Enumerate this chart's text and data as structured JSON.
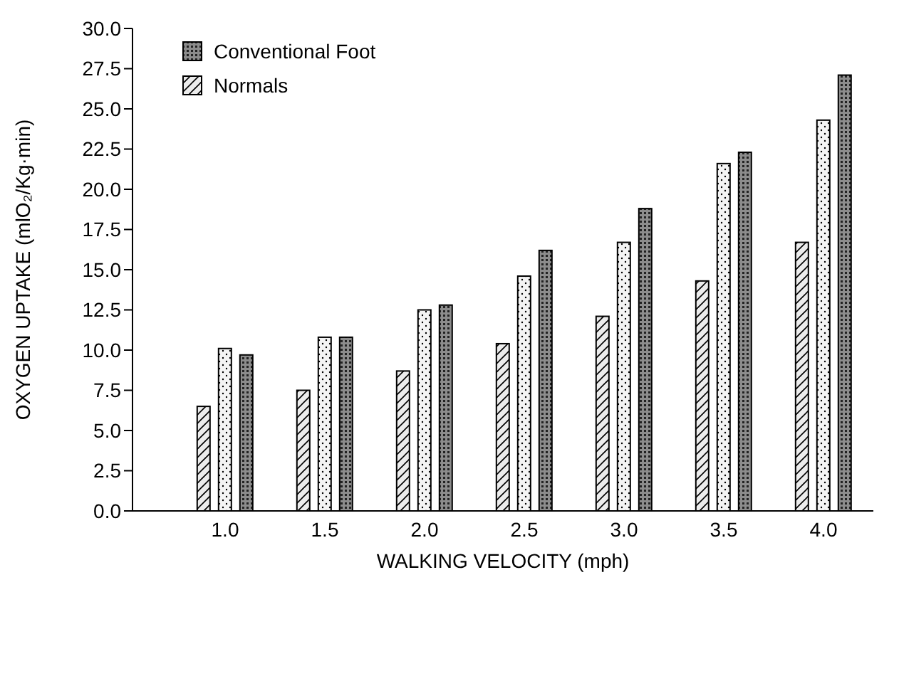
{
  "chart_data": {
    "type": "bar",
    "xlabel": "WALKING VELOCITY (mph)",
    "ylabel": "OXYGEN UPTAKE (mlO₂/Kg·min)",
    "categories": [
      "1.0",
      "1.5",
      "2.0",
      "2.5",
      "3.0",
      "3.5",
      "4.0"
    ],
    "series": [
      {
        "name": "Normals",
        "color": "#ececec",
        "values": [
          6.5,
          7.5,
          8.7,
          10.4,
          12.1,
          14.3,
          16.7
        ]
      },
      {
        "color": "#f4f4f4",
        "values": [
          10.1,
          10.8,
          12.5,
          14.6,
          16.7,
          21.6,
          24.3
        ]
      },
      {
        "name": "Conventional Foot",
        "color": "#8c8c8c",
        "values": [
          9.7,
          10.8,
          12.8,
          16.2,
          18.8,
          22.3,
          27.1
        ]
      }
    ],
    "ylim": [
      0,
      30
    ],
    "yticks": [
      {
        "value": 0,
        "label": "0.0"
      },
      {
        "value": 2.5,
        "label": "2.5"
      },
      {
        "value": 5,
        "label": "5.0"
      },
      {
        "value": 7.5,
        "label": "7.5"
      },
      {
        "value": 10,
        "label": "10.0"
      },
      {
        "value": 12.5,
        "label": "12.5"
      },
      {
        "value": 15,
        "label": "15.0"
      },
      {
        "value": 17.5,
        "label": "17.5"
      },
      {
        "value": 20,
        "label": "20.0"
      },
      {
        "value": 22.5,
        "label": "22.5"
      },
      {
        "value": 25,
        "label": "25.0"
      },
      {
        "value": 27.5,
        "label": "27.5"
      },
      {
        "value": 30,
        "label": "30.0"
      }
    ],
    "grid": false,
    "legend": "top left"
  }
}
